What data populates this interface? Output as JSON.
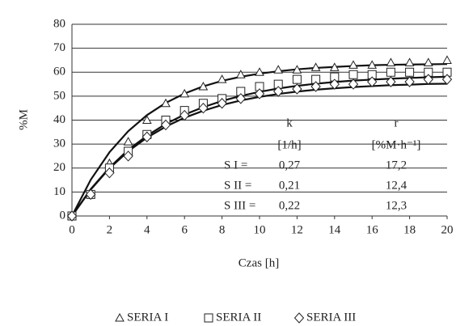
{
  "chart_data": {
    "type": "scatter",
    "ylabel": "%M",
    "xlabel": "Czas [h]",
    "x": [
      0,
      1,
      2,
      3,
      4,
      5,
      6,
      7,
      8,
      9,
      10,
      11,
      12,
      13,
      14,
      15,
      16,
      17,
      18,
      19,
      20
    ],
    "xlim": [
      0,
      20
    ],
    "xticks": [
      0,
      2,
      4,
      6,
      8,
      10,
      12,
      14,
      16,
      18,
      20
    ],
    "ylim": [
      0,
      80
    ],
    "yticks": [
      0,
      10,
      20,
      30,
      40,
      50,
      60,
      70,
      80
    ],
    "grid": true,
    "legend": "bottom",
    "series": [
      {
        "name": "SERIA I",
        "marker": "triangle",
        "color": "#222",
        "values": [
          0,
          9,
          22,
          31,
          40,
          47,
          51,
          54,
          57,
          59,
          60,
          61,
          61,
          62,
          62,
          63,
          63,
          64,
          64,
          64,
          65
        ],
        "fit_values": [
          0,
          15.1,
          26.6,
          35.4,
          42.1,
          47.2,
          51.1,
          54.1,
          56.4,
          58.1,
          59.4,
          60.4,
          61.2,
          61.8,
          62.2,
          62.6,
          62.9,
          63.1,
          63.2,
          63.3,
          63.4
        ]
      },
      {
        "name": "SERIA II",
        "marker": "square",
        "color": "#222",
        "values": [
          0,
          9,
          20,
          27,
          34,
          40,
          44,
          47,
          49,
          52,
          54,
          55,
          57,
          57,
          58,
          59,
          59,
          60,
          60,
          60,
          60
        ],
        "fit_values": [
          0,
          11.2,
          20.2,
          27.6,
          33.5,
          38.4,
          42.3,
          45.4,
          48.0,
          50.1,
          51.8,
          53.2,
          54.3,
          55.2,
          55.9,
          56.5,
          56.9,
          57.3,
          57.6,
          57.9,
          58.1
        ]
      },
      {
        "name": "SERIA III",
        "marker": "diamond",
        "color": "#222",
        "values": [
          0,
          9,
          18,
          25,
          33,
          38,
          42,
          45,
          47,
          49,
          51,
          52,
          53,
          54,
          55,
          55,
          56,
          56,
          56,
          57,
          57
        ],
        "fit_values": [
          0,
          11.0,
          19.9,
          27.0,
          32.7,
          37.3,
          41.0,
          43.9,
          46.3,
          48.2,
          49.7,
          50.9,
          51.9,
          52.7,
          53.3,
          53.8,
          54.2,
          54.6,
          54.8,
          55.1,
          55.2
        ]
      }
    ],
    "annotation": {
      "headers": [
        "k",
        "r"
      ],
      "units": [
        "[1/h]",
        "[%M·h⁻¹]"
      ],
      "rows": [
        [
          "S I =",
          "0,27",
          "17,2"
        ],
        [
          "S II =",
          "0,21",
          "12,4"
        ],
        [
          "S III = ",
          "0,22",
          "12,3"
        ]
      ]
    }
  }
}
